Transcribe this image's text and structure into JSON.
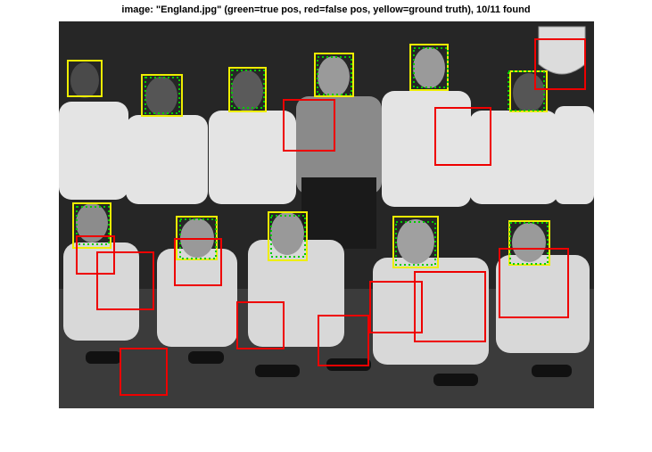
{
  "figure": {
    "title": "image: \"England.jpg\" (green=true pos, red=false pos, yellow=ground truth), 10/11 found"
  },
  "image": {
    "file": "England.jpg",
    "description_icon": "team-photo-grayscale"
  },
  "legend_colors": {
    "true_pos": "#00cc00",
    "false_pos": "#ee0000",
    "ground_truth": "#eeee00"
  }
}
